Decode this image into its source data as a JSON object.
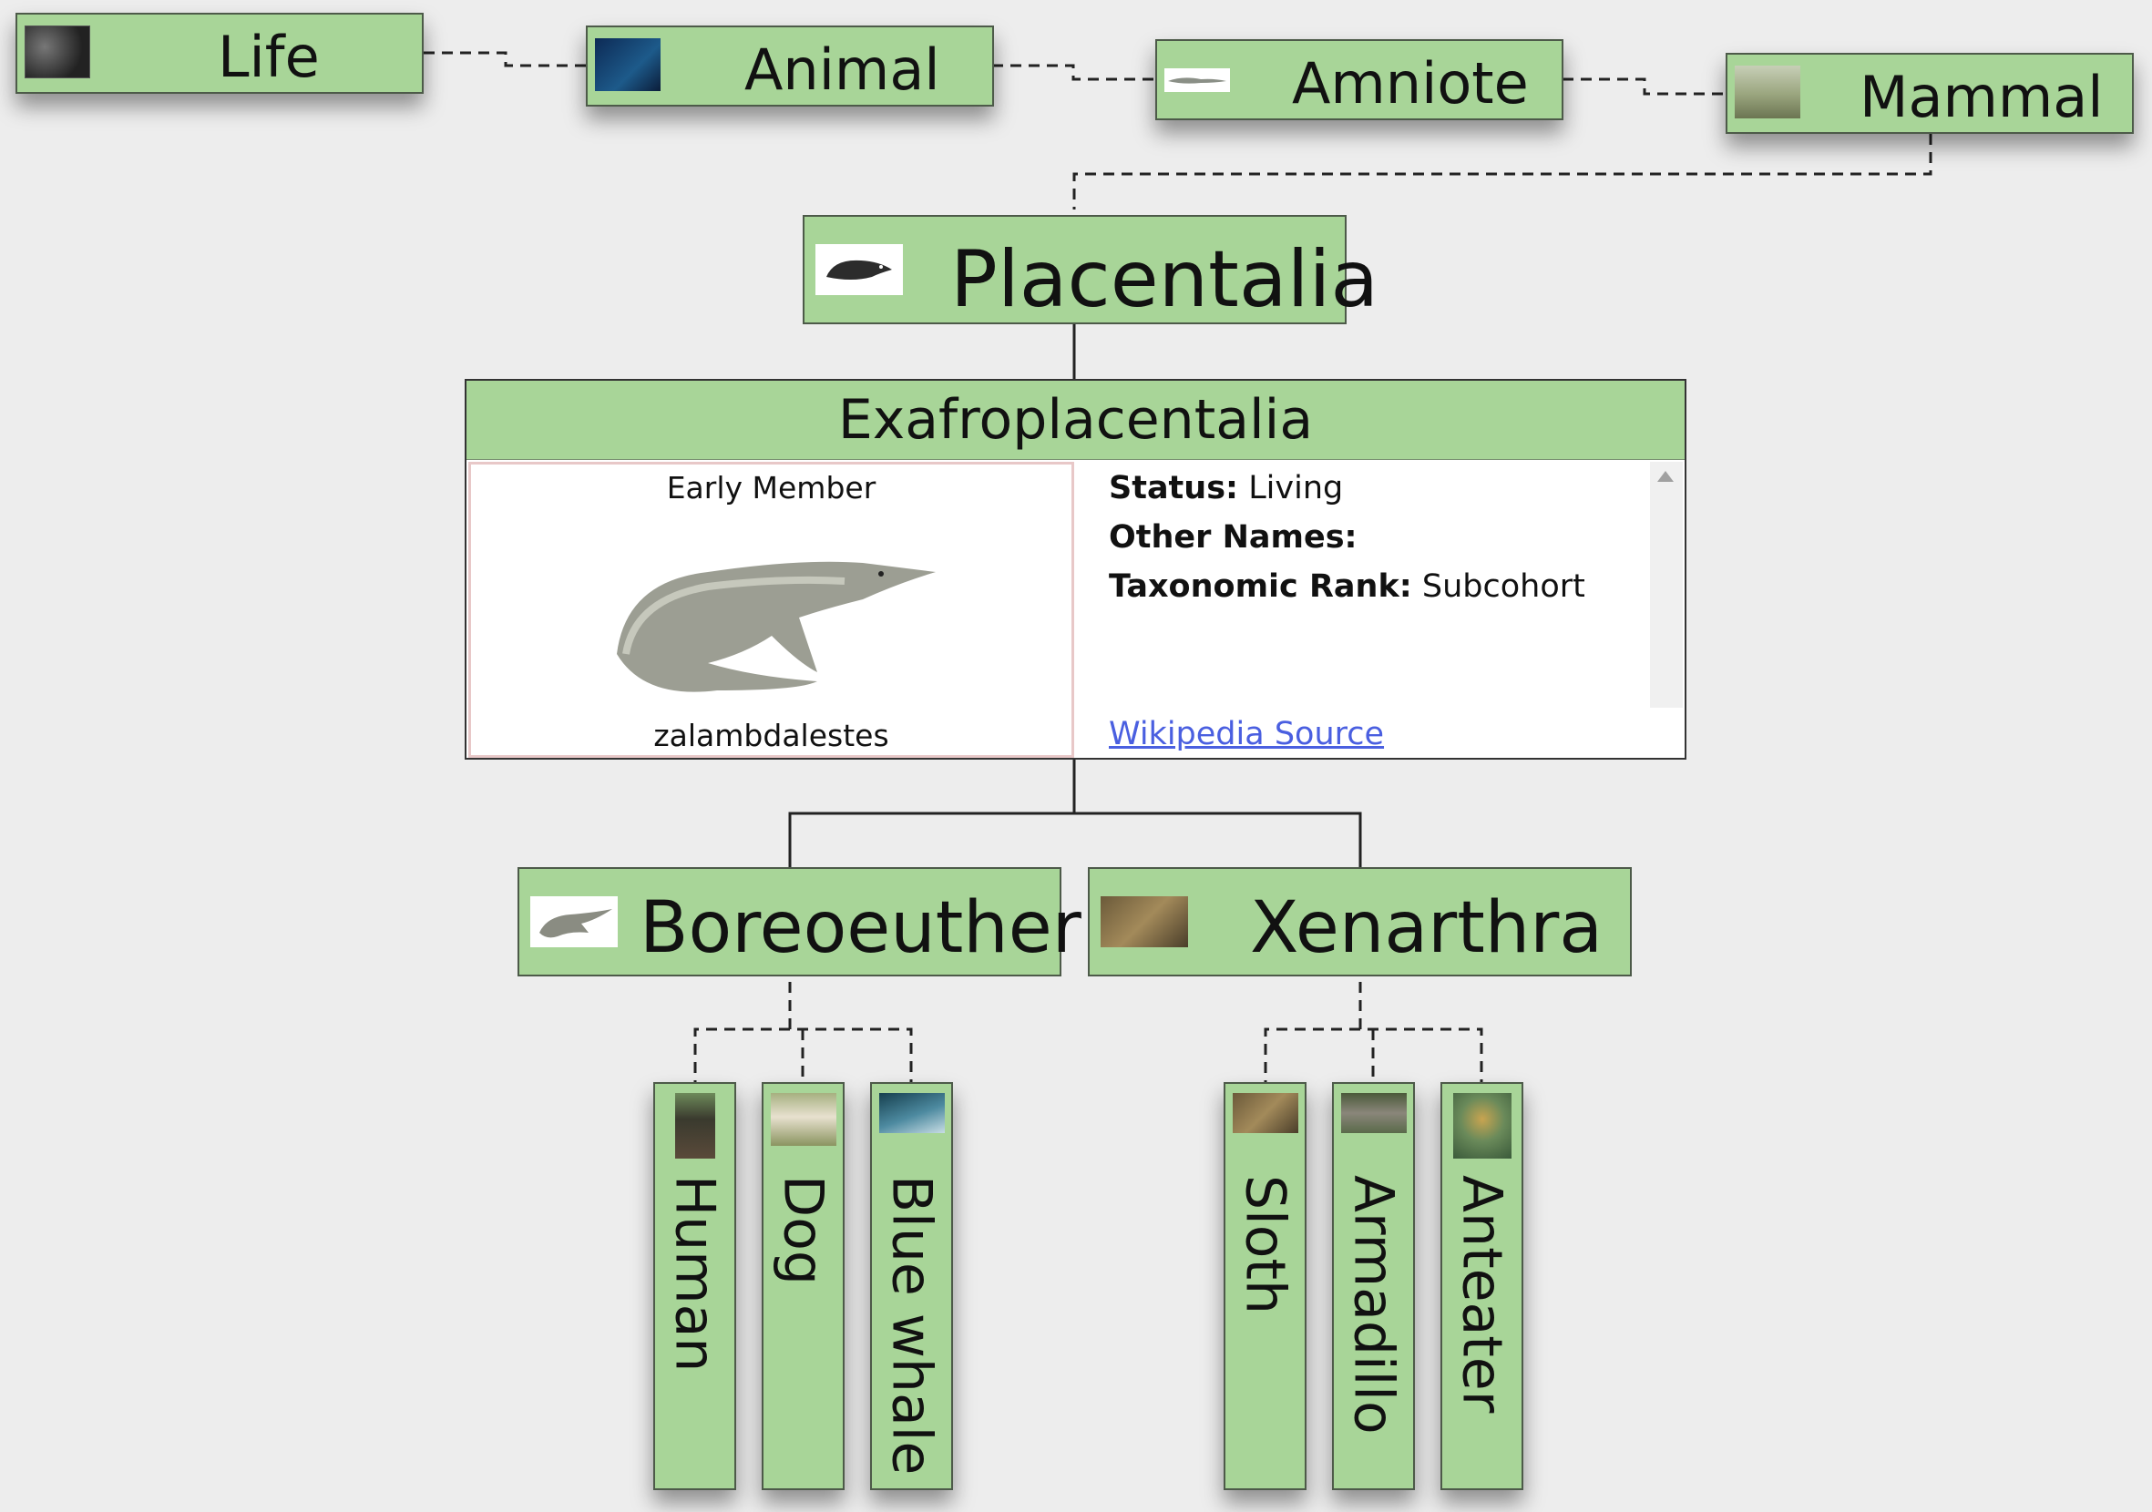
{
  "ancestors": [
    {
      "label": "Life",
      "thumb_icon": "microbe-icon"
    },
    {
      "label": "Animal",
      "thumb_icon": "sea-creature-icon"
    },
    {
      "label": "Amniote",
      "thumb_icon": "lizard-icon"
    },
    {
      "label": "Mammal",
      "thumb_icon": "mammal-icon"
    }
  ],
  "parent": {
    "label": "Placentalia",
    "thumb_icon": "shrew-icon"
  },
  "current": {
    "title": "Exafroplacentalia",
    "member_caption": "Early Member",
    "member_name": "zalambdalestes",
    "status_label": "Status:",
    "status_value": "Living",
    "other_names_label": "Other Names:",
    "other_names_value": "",
    "rank_label": "Taxonomic Rank:",
    "rank_value": "Subcohort",
    "source_link": "Wikipedia Source"
  },
  "children": [
    {
      "label": "Boreoeutheria",
      "thumb_icon": "shrew-icon",
      "leaves": [
        {
          "label": "Human",
          "thumb_icon": "human-icon"
        },
        {
          "label": "Dog",
          "thumb_icon": "dog-icon"
        },
        {
          "label": "Blue whale",
          "thumb_icon": "whale-icon"
        }
      ]
    },
    {
      "label": "Xenarthra",
      "thumb_icon": "sloth-icon",
      "leaves": [
        {
          "label": "Sloth",
          "thumb_icon": "sloth-icon"
        },
        {
          "label": "Armadillo",
          "thumb_icon": "armadillo-icon"
        },
        {
          "label": "Anteater",
          "thumb_icon": "anteater-icon"
        }
      ]
    }
  ],
  "colors": {
    "node_fill": "#a8d598",
    "node_border": "#4d5a49",
    "link": "#4a5fe0",
    "background": "#ededed"
  }
}
